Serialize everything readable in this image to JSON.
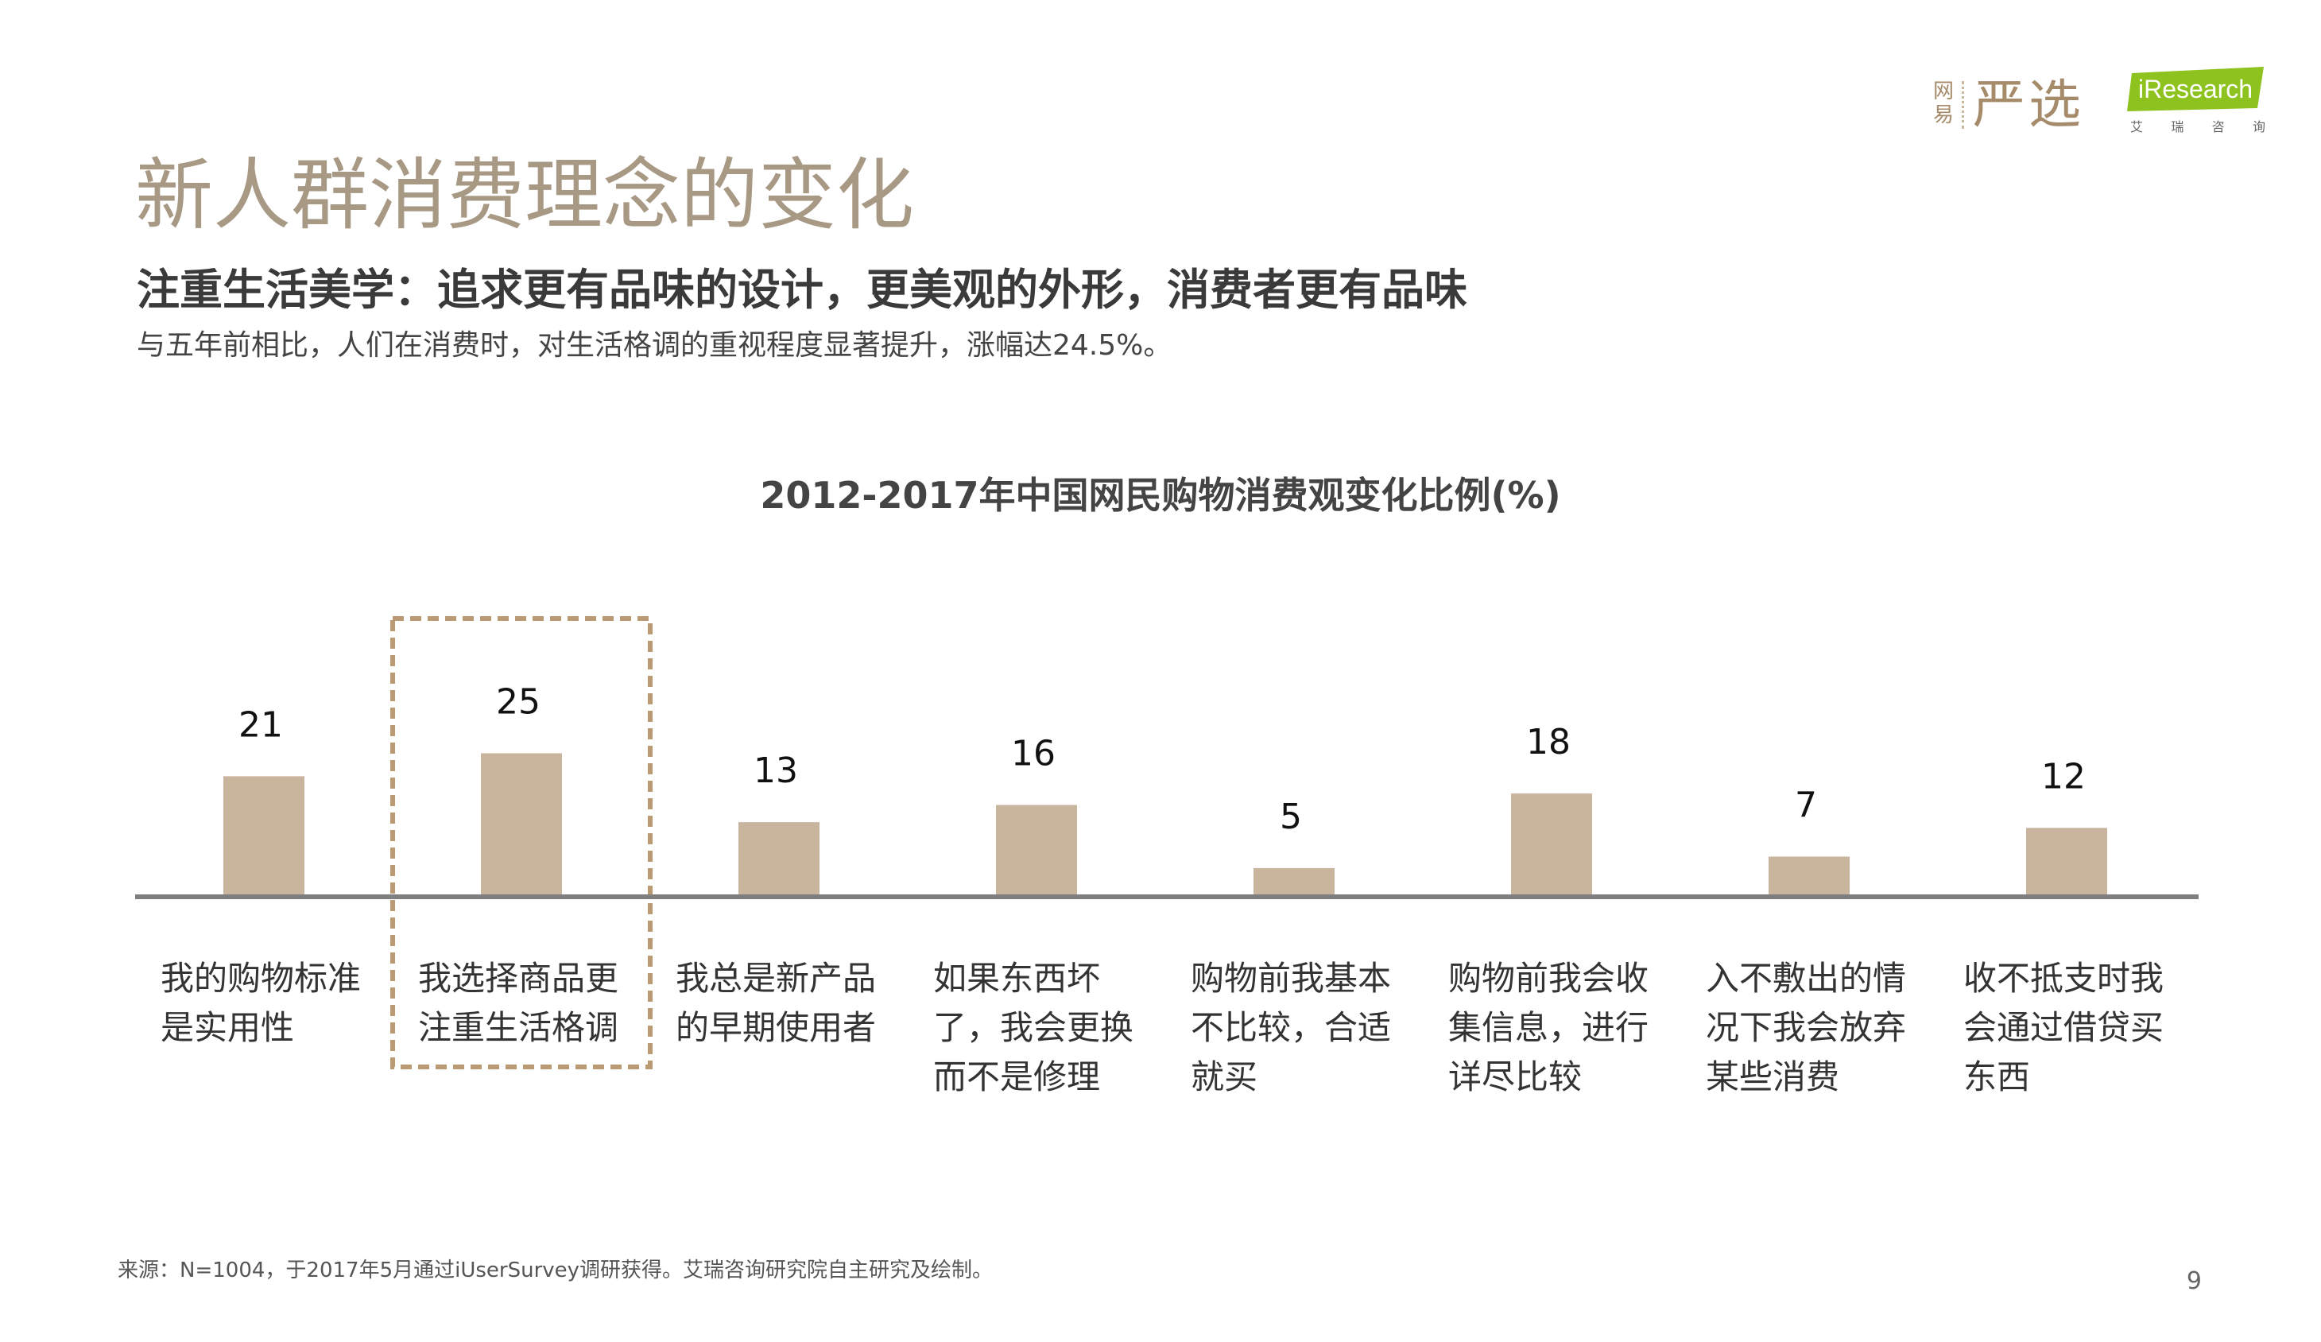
{
  "logos": {
    "wy_small": "网易",
    "wy_main": "严选",
    "iresearch": "iResearch",
    "iresearch_sub": [
      "艾",
      "瑞",
      "咨",
      "询"
    ]
  },
  "title": "新人群消费理念的变化",
  "headline": "注重生活美学：追求更有品味的设计，更美观的外形，消费者更有品味",
  "subline": "与五年前相比，人们在消费时，对生活格调的重视程度显著提升，涨幅达24.5%。",
  "colors": {
    "bar": "#c9b49e",
    "axis": "#7f7f7f",
    "highlight_border": "#b99a73",
    "title": "#a89985"
  },
  "chart_data": {
    "type": "bar",
    "title": "2012-2017年中国网民购物消费观变化比例(%)",
    "categories": [
      "我的购物标准是实用性",
      "我选择商品更注重生活格调",
      "我总是新产品的早期使用者",
      "如果东西坏了，我会更换而不是修理",
      "购物前我基本不比较，合适就买",
      "购物前我会收集信息，进行详尽比较",
      "入不敷出的情况下我会放弃某些消费",
      "收不抵支时我会通过借贷买东西"
    ],
    "category_lines": [
      [
        "我的购物标准",
        "是实用性"
      ],
      [
        "我选择商品更",
        "注重生活格调"
      ],
      [
        "我总是新产品",
        "的早期使用者"
      ],
      [
        "如果东西坏",
        "了，我会更换",
        "而不是修理"
      ],
      [
        "购物前我基本",
        "不比较，合适",
        "就买"
      ],
      [
        "购物前我会收",
        "集信息，进行",
        "详尽比较"
      ],
      [
        "入不敷出的情",
        "况下我会放弃",
        "某些消费"
      ],
      [
        "收不抵支时我",
        "会通过借贷买",
        "东西"
      ]
    ],
    "values": [
      21,
      25,
      13,
      16,
      5,
      18,
      7,
      12
    ],
    "highlighted_index": 1,
    "xlabel": "",
    "ylabel": "",
    "grid": false
  },
  "footer": {
    "source": "来源：N=1004，于2017年5月通过iUserSurvey调研获得。艾瑞咨询研究院自主研究及绘制。",
    "page_number": "9"
  }
}
